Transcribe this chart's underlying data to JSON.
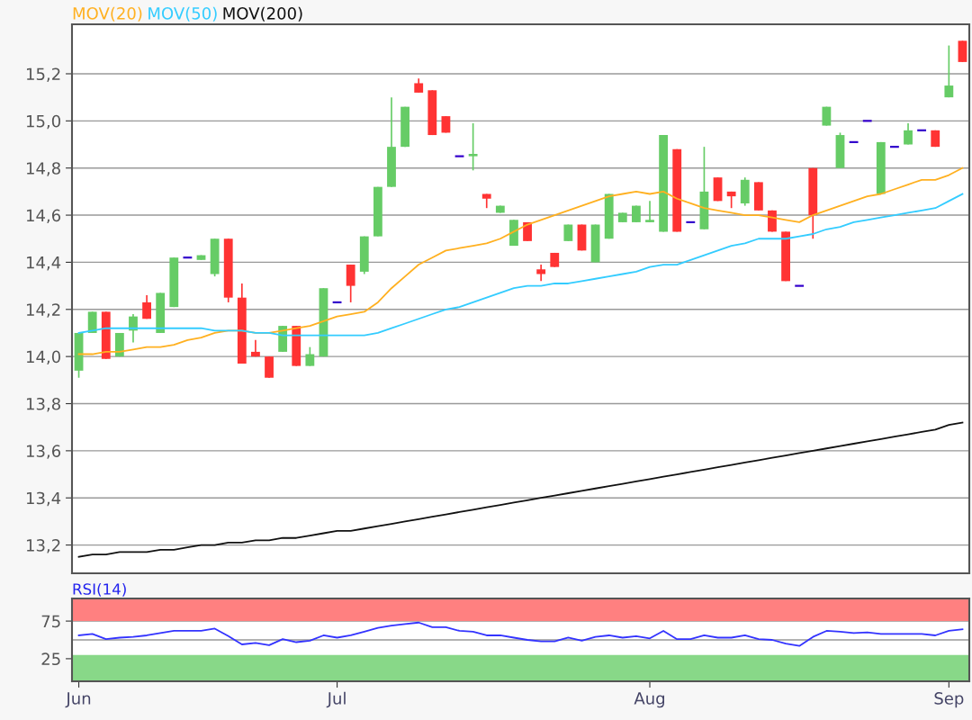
{
  "chart_data": [
    {
      "type": "candlestick",
      "legend": "top left",
      "grid": "y",
      "tick_labels": "y",
      "categories": [
        null,
        null,
        null,
        null,
        null,
        null,
        null,
        null,
        null,
        null,
        null,
        null,
        null,
        null,
        null,
        null,
        null,
        null,
        null,
        null,
        null,
        null,
        null,
        null,
        null,
        null,
        null,
        null,
        null,
        null,
        null,
        null,
        null,
        null,
        null,
        null,
        null,
        null,
        null,
        null,
        null,
        null,
        null,
        null,
        null,
        null,
        null,
        null,
        null,
        null,
        null,
        null,
        null,
        null,
        null,
        null,
        null,
        null,
        null,
        null,
        null,
        null,
        null,
        null,
        null,
        null
      ],
      "ohlc": [
        [
          13.94,
          14.1,
          13.91,
          14.1
        ],
        [
          14.1,
          14.19,
          14.1,
          14.19
        ],
        [
          14.19,
          14.19,
          13.99,
          13.99
        ],
        [
          14.0,
          14.1,
          14.0,
          14.1
        ],
        [
          14.11,
          14.18,
          14.06,
          14.17
        ],
        [
          14.23,
          14.26,
          14.16,
          14.16
        ],
        [
          14.1,
          14.27,
          14.1,
          14.27
        ],
        [
          14.21,
          14.42,
          14.21,
          14.42
        ],
        [
          14.42,
          14.42,
          14.42,
          14.42
        ],
        [
          14.41,
          14.43,
          14.41,
          14.43
        ],
        [
          14.35,
          14.5,
          14.34,
          14.5
        ],
        [
          14.5,
          14.5,
          14.23,
          14.25
        ],
        [
          14.25,
          14.31,
          13.97,
          13.97
        ],
        [
          14.02,
          14.07,
          14.0,
          14.0
        ],
        [
          14.0,
          14.0,
          13.91,
          13.91
        ],
        [
          14.02,
          14.13,
          14.02,
          14.13
        ],
        [
          14.13,
          14.13,
          13.96,
          13.96
        ],
        [
          13.96,
          14.04,
          13.96,
          14.01
        ],
        [
          14.0,
          14.29,
          14.0,
          14.29
        ],
        [
          14.23,
          14.23,
          14.23,
          14.23
        ],
        [
          14.39,
          14.39,
          14.23,
          14.3
        ],
        [
          14.36,
          14.51,
          14.35,
          14.51
        ],
        [
          14.51,
          14.72,
          14.51,
          14.72
        ],
        [
          14.72,
          15.1,
          14.72,
          14.89
        ],
        [
          14.89,
          15.06,
          14.89,
          15.06
        ],
        [
          15.16,
          15.18,
          15.12,
          15.12
        ],
        [
          15.13,
          15.13,
          14.94,
          14.94
        ],
        [
          15.02,
          15.02,
          14.95,
          14.95
        ],
        [
          14.85,
          14.85,
          14.85,
          14.85
        ],
        [
          14.85,
          14.99,
          14.79,
          14.86
        ],
        [
          14.69,
          14.69,
          14.63,
          14.67
        ],
        [
          14.61,
          14.64,
          14.61,
          14.64
        ],
        [
          14.47,
          14.58,
          14.47,
          14.58
        ],
        [
          14.57,
          14.57,
          14.49,
          14.49
        ],
        [
          14.37,
          14.39,
          14.32,
          14.35
        ],
        [
          14.44,
          14.44,
          14.38,
          14.38
        ],
        [
          14.49,
          14.56,
          14.49,
          14.56
        ],
        [
          14.56,
          14.56,
          14.45,
          14.45
        ],
        [
          14.4,
          14.56,
          14.4,
          14.56
        ],
        [
          14.5,
          14.69,
          14.5,
          14.69
        ],
        [
          14.57,
          14.61,
          14.57,
          14.61
        ],
        [
          14.57,
          14.64,
          14.57,
          14.64
        ],
        [
          14.57,
          14.66,
          14.57,
          14.58
        ],
        [
          14.53,
          14.94,
          14.53,
          14.94
        ],
        [
          14.88,
          14.88,
          14.53,
          14.53
        ],
        [
          14.57,
          14.57,
          14.57,
          14.57
        ],
        [
          14.54,
          14.89,
          14.54,
          14.7
        ],
        [
          14.76,
          14.76,
          14.66,
          14.66
        ],
        [
          14.7,
          14.7,
          14.63,
          14.68
        ],
        [
          14.65,
          14.76,
          14.64,
          14.75
        ],
        [
          14.74,
          14.74,
          14.62,
          14.62
        ],
        [
          14.62,
          14.62,
          14.53,
          14.53
        ],
        [
          14.53,
          14.53,
          14.32,
          14.32
        ],
        [
          14.3,
          14.3,
          14.3,
          14.3
        ],
        [
          14.8,
          14.8,
          14.5,
          14.6
        ],
        [
          14.98,
          15.06,
          14.98,
          15.06
        ],
        [
          14.8,
          14.95,
          14.8,
          14.94
        ],
        [
          14.91,
          14.91,
          14.91,
          14.91
        ],
        [
          15.0,
          15.0,
          15.0,
          15.0
        ],
        [
          14.69,
          14.91,
          14.69,
          14.91
        ],
        [
          14.89,
          14.89,
          14.89,
          14.89
        ],
        [
          14.9,
          14.99,
          14.9,
          14.96
        ],
        [
          14.96,
          14.96,
          14.96,
          14.96
        ],
        [
          14.96,
          14.96,
          14.89,
          14.89
        ],
        [
          15.1,
          15.32,
          15.1,
          15.15
        ],
        [
          15.34,
          15.34,
          15.25,
          15.25
        ]
      ],
      "colors": [
        "#66cc66",
        "#66cc66",
        "#ff3333",
        "#66cc66",
        "#66cc66",
        "#ff3333",
        "#66cc66",
        "#66cc66",
        "#3300cc",
        "#66cc66",
        "#66cc66",
        "#ff3333",
        "#ff3333",
        "#ff3333",
        "#ff3333",
        "#66cc66",
        "#ff3333",
        "#66cc66",
        "#66cc66",
        "#3300cc",
        "#ff3333",
        "#66cc66",
        "#66cc66",
        "#66cc66",
        "#66cc66",
        "#ff3333",
        "#ff3333",
        "#ff3333",
        "#3300cc",
        "#66cc66",
        "#ff3333",
        "#66cc66",
        "#66cc66",
        "#ff3333",
        "#ff3333",
        "#ff3333",
        "#66cc66",
        "#ff3333",
        "#66cc66",
        "#66cc66",
        "#66cc66",
        "#66cc66",
        "#66cc66",
        "#66cc66",
        "#ff3333",
        "#3300cc",
        "#66cc66",
        "#ff3333",
        "#ff3333",
        "#66cc66",
        "#ff3333",
        "#ff3333",
        "#ff3333",
        "#3300cc",
        "#ff3333",
        "#66cc66",
        "#66cc66",
        "#3300cc",
        "#3300cc",
        "#66cc66",
        "#3300cc",
        "#66cc66",
        "#3300cc",
        "#ff3333",
        "#66cc66",
        "#ff3333"
      ],
      "series": [
        {
          "name": "MOV(20)",
          "type": "line",
          "color": "#ffb020",
          "values": [
            14.01,
            14.01,
            14.02,
            14.02,
            14.03,
            14.04,
            14.04,
            14.05,
            14.07,
            14.08,
            14.1,
            14.11,
            14.11,
            14.1,
            14.1,
            14.11,
            14.12,
            14.13,
            14.15,
            14.17,
            14.18,
            14.19,
            14.23,
            14.29,
            14.34,
            14.39,
            14.42,
            14.45,
            14.46,
            14.47,
            14.48,
            14.5,
            14.53,
            14.56,
            14.58,
            14.6,
            14.62,
            14.64,
            14.66,
            14.68,
            14.69,
            14.7,
            14.69,
            14.7,
            14.67,
            14.65,
            14.63,
            14.62,
            14.61,
            14.6,
            14.6,
            14.59,
            14.58,
            14.57,
            14.6,
            14.62,
            14.64,
            14.66,
            14.68,
            14.69,
            14.71,
            14.73,
            14.75,
            14.75,
            14.77,
            14.8
          ]
        },
        {
          "name": "MOV(50)",
          "type": "line",
          "color": "#33ccff",
          "values": [
            14.1,
            14.11,
            14.12,
            14.12,
            14.12,
            14.12,
            14.12,
            14.12,
            14.12,
            14.12,
            14.11,
            14.11,
            14.11,
            14.1,
            14.1,
            14.09,
            14.09,
            14.09,
            14.09,
            14.09,
            14.09,
            14.09,
            14.1,
            14.12,
            14.14,
            14.16,
            14.18,
            14.2,
            14.21,
            14.23,
            14.25,
            14.27,
            14.29,
            14.3,
            14.3,
            14.31,
            14.31,
            14.32,
            14.33,
            14.34,
            14.35,
            14.36,
            14.38,
            14.39,
            14.39,
            14.41,
            14.43,
            14.45,
            14.47,
            14.48,
            14.5,
            14.5,
            14.5,
            14.51,
            14.52,
            14.54,
            14.55,
            14.57,
            14.58,
            14.59,
            14.6,
            14.61,
            14.62,
            14.63,
            14.66,
            14.69
          ]
        },
        {
          "name": "MOV(200)",
          "type": "line",
          "color": "#111111",
          "values": [
            13.15,
            13.16,
            13.16,
            13.17,
            13.17,
            13.17,
            13.18,
            13.18,
            13.19,
            13.2,
            13.2,
            13.21,
            13.21,
            13.22,
            13.22,
            13.23,
            13.23,
            13.24,
            13.25,
            13.26,
            13.26,
            13.27,
            13.28,
            13.29,
            13.3,
            13.31,
            13.32,
            13.33,
            13.34,
            13.35,
            13.36,
            13.37,
            13.38,
            13.39,
            13.4,
            13.41,
            13.42,
            13.43,
            13.44,
            13.45,
            13.46,
            13.47,
            13.48,
            13.49,
            13.5,
            13.51,
            13.52,
            13.53,
            13.54,
            13.55,
            13.56,
            13.57,
            13.58,
            13.59,
            13.6,
            13.61,
            13.62,
            13.63,
            13.64,
            13.65,
            13.66,
            13.67,
            13.68,
            13.69,
            13.71,
            13.72
          ]
        }
      ],
      "ylim": [
        13.08,
        15.41
      ],
      "yticks": [
        {
          "value": 13.2,
          "label": "13,2"
        },
        {
          "value": 13.4,
          "label": "13,4"
        },
        {
          "value": 13.6,
          "label": "13,6"
        },
        {
          "value": 13.8,
          "label": "13,8"
        },
        {
          "value": 14.0,
          "label": "14,0"
        },
        {
          "value": 14.2,
          "label": "14,2"
        },
        {
          "value": 14.4,
          "label": "14,4"
        },
        {
          "value": 14.6,
          "label": "14,6"
        },
        {
          "value": 14.8,
          "label": "14,8"
        },
        {
          "value": 15.0,
          "label": "15,0"
        },
        {
          "value": 15.2,
          "label": "15,2"
        }
      ]
    },
    {
      "type": "line",
      "title": "RSI(14)",
      "grid": "y",
      "categories": [
        "Jun",
        null,
        null,
        null,
        null,
        null,
        null,
        null,
        null,
        null,
        null,
        null,
        null,
        null,
        null,
        null,
        null,
        null,
        null,
        "Jul",
        null,
        null,
        null,
        null,
        null,
        null,
        null,
        null,
        null,
        null,
        null,
        null,
        null,
        null,
        null,
        null,
        null,
        null,
        null,
        null,
        null,
        null,
        "Aug",
        null,
        null,
        null,
        null,
        null,
        null,
        null,
        null,
        null,
        null,
        null,
        null,
        null,
        null,
        null,
        null,
        null,
        null,
        null,
        null,
        null,
        "Sep",
        null
      ],
      "series": [
        {
          "color": "#3333ff",
          "values": [
            56,
            58,
            51,
            53,
            54,
            56,
            59,
            62,
            62,
            62,
            65,
            55,
            44,
            46,
            43,
            51,
            47,
            49,
            56,
            53,
            56,
            61,
            66,
            69,
            71,
            73,
            67,
            67,
            62,
            61,
            56,
            56,
            53,
            50,
            48,
            48,
            53,
            49,
            54,
            56,
            53,
            55,
            52,
            62,
            51,
            51,
            56,
            53,
            53,
            56,
            51,
            50,
            45,
            42,
            54,
            62,
            61,
            59,
            60,
            58,
            58,
            58,
            58,
            56,
            62,
            64
          ]
        }
      ],
      "ylim": [
        -5,
        105
      ],
      "yticks": [
        25,
        75
      ],
      "bands": [
        {
          "axis": "y",
          "from": 75,
          "to": 105,
          "color": "#ff8080"
        },
        {
          "axis": "y",
          "from": -5,
          "to": 30,
          "color": "#88d888"
        }
      ],
      "ref_lines": [
        {
          "axis": "y",
          "value": 50,
          "color": "#999999"
        }
      ]
    }
  ]
}
